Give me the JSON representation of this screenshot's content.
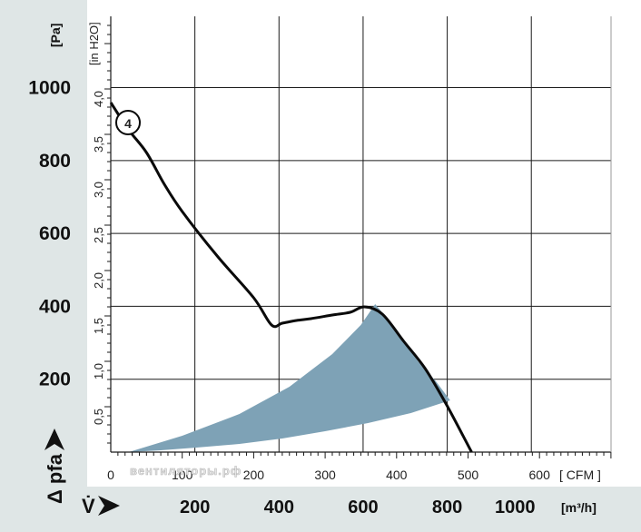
{
  "chart_data": {
    "type": "line",
    "units": {
      "pa": "[Pa]",
      "inh2o": "[in H2O]",
      "cfm": "[ CFM ]",
      "m3h": "[m³/h]"
    },
    "axis_symbols": {
      "y": "Δ pfa",
      "x": "V̇"
    },
    "y_ticks_pa": [
      200,
      400,
      600,
      800,
      1000
    ],
    "y_ticks_inh2o": [
      "0,5",
      "1,0",
      "1,5",
      "2,0",
      "2,5",
      "3,0",
      "3,5",
      "4,0"
    ],
    "x_ticks_cfm": [
      0,
      100,
      200,
      300,
      400,
      500,
      600
    ],
    "x_ticks_m3h": [
      200,
      400,
      600,
      800,
      1000
    ],
    "ylim_inh2o": [
      0,
      4.8
    ],
    "xlim_cfm": [
      0,
      705
    ],
    "grid": true,
    "series": [
      {
        "name": "4",
        "points_cfm_inh2o": [
          [
            0,
            3.85
          ],
          [
            25,
            3.55
          ],
          [
            50,
            3.3
          ],
          [
            75,
            2.95
          ],
          [
            100,
            2.65
          ],
          [
            150,
            2.15
          ],
          [
            200,
            1.7
          ],
          [
            225,
            1.4
          ],
          [
            240,
            1.42
          ],
          [
            260,
            1.45
          ],
          [
            280,
            1.47
          ],
          [
            310,
            1.51
          ],
          [
            335,
            1.54
          ],
          [
            355,
            1.6
          ],
          [
            380,
            1.52
          ],
          [
            410,
            1.22
          ],
          [
            440,
            0.92
          ],
          [
            470,
            0.52
          ],
          [
            505,
            0
          ]
        ]
      }
    ],
    "recommended_range_cfm_inh2o": {
      "upper": [
        [
          25,
          0
        ],
        [
          100,
          0.18
        ],
        [
          180,
          0.42
        ],
        [
          250,
          0.72
        ],
        [
          310,
          1.08
        ],
        [
          350,
          1.4
        ],
        [
          370,
          1.63
        ],
        [
          400,
          1.35
        ],
        [
          430,
          1.0
        ],
        [
          455,
          0.78
        ],
        [
          475,
          0.57
        ]
      ],
      "lower": [
        [
          475,
          0.57
        ],
        [
          420,
          0.43
        ],
        [
          360,
          0.32
        ],
        [
          300,
          0.23
        ],
        [
          240,
          0.15
        ],
        [
          180,
          0.09
        ],
        [
          120,
          0.05
        ],
        [
          70,
          0.02
        ],
        [
          25,
          0
        ]
      ]
    },
    "watermark": "вентиляторы.рф"
  },
  "colors": {
    "band": "#dfe6e6",
    "grid": "#1a1a1a",
    "curve": "#0a0a0a",
    "range_fill": "#7ea2b6"
  }
}
